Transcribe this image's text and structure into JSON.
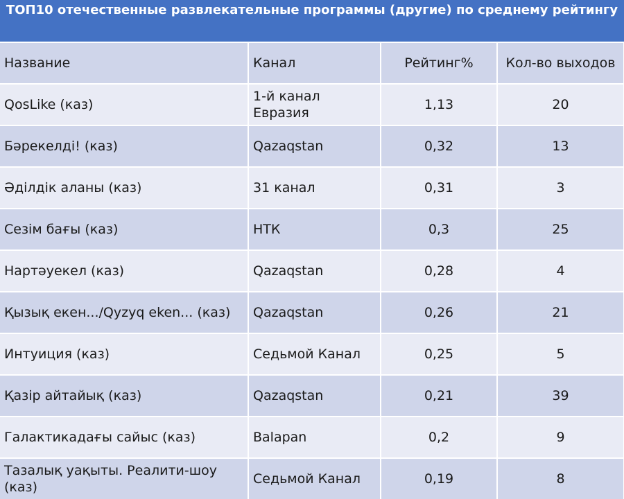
{
  "title": "ТОП10 отечественные развлекательные программы (другие) по среднему рейтингу",
  "columns": [
    "Название",
    "Канал",
    "Рейтинг%",
    "Кол-во выходов"
  ],
  "rows": [
    {
      "name": "QosLike (каз)",
      "channel": "1-й канал Евразия",
      "rating": "1,13",
      "count": "20"
    },
    {
      "name": "Бәрекелді! (каз)",
      "channel": "Qazaqstan",
      "rating": "0,32",
      "count": "13"
    },
    {
      "name": "Әділдік аланы (каз)",
      "channel": "31 канал",
      "rating": "0,31",
      "count": "3"
    },
    {
      "name": "Сезім бағы (каз)",
      "channel": "НТК",
      "rating": "0,3",
      "count": "25"
    },
    {
      "name": "Нартәуекел (каз)",
      "channel": "Qazaqstan",
      "rating": "0,28",
      "count": "4"
    },
    {
      "name": "Қызық екен.../Qyzyq eken... (каз)",
      "channel": "Qazaqstan",
      "rating": "0,26",
      "count": "21"
    },
    {
      "name": "Интуиция (каз)",
      "channel": "Седьмой Канал",
      "rating": "0,25",
      "count": "5"
    },
    {
      "name": "Қазір айтайық (каз)",
      "channel": "Qazaqstan",
      "rating": "0,21",
      "count": "39"
    },
    {
      "name": "Галактикадағы сайыс (каз)",
      "channel": "Balapan",
      "rating": "0,2",
      "count": "9"
    },
    {
      "name": "Тазалық уақыты. Реалити-шоу (каз)",
      "channel": "Седьмой Канал",
      "rating": "0,19",
      "count": "8"
    }
  ]
}
